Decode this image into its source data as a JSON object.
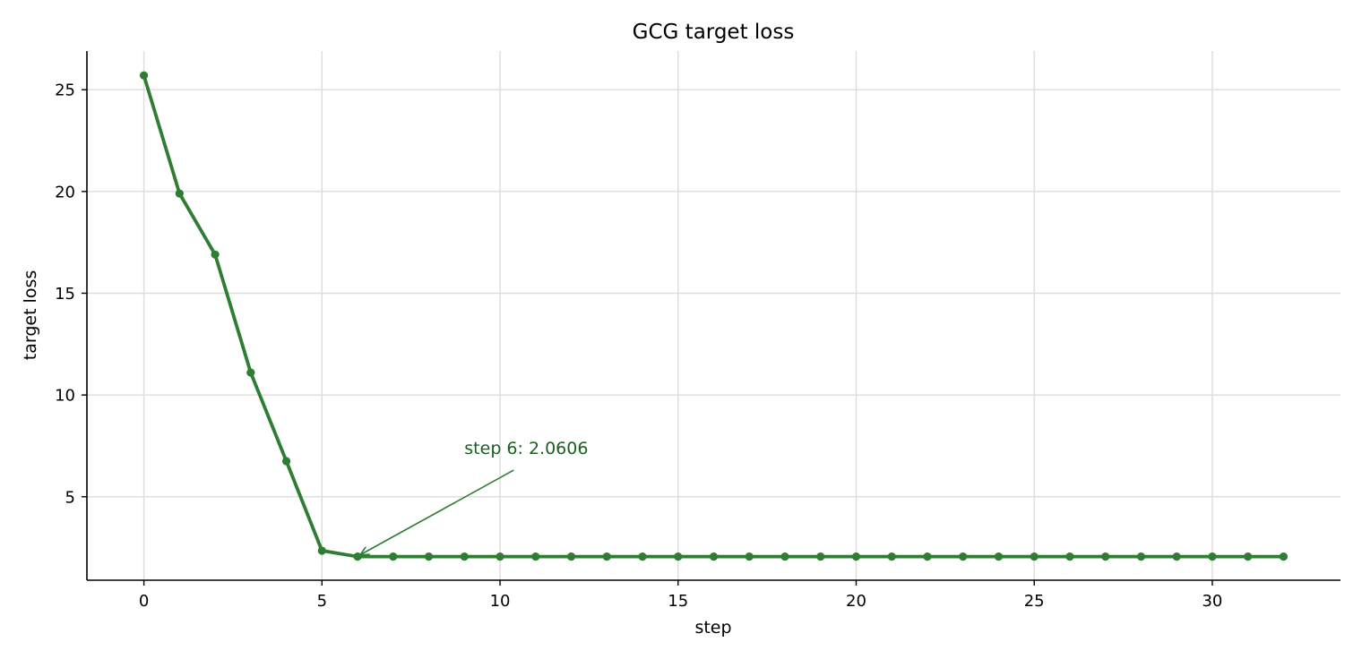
{
  "chart_data": {
    "type": "line",
    "title": "GCG target loss",
    "xlabel": "step",
    "ylabel": "target loss",
    "xlim": [
      -1.6,
      33.6
    ],
    "ylim": [
      0.9,
      26.9
    ],
    "xticks": [
      0,
      5,
      10,
      15,
      20,
      25,
      30
    ],
    "yticks": [
      5,
      10,
      15,
      20,
      25
    ],
    "grid": true,
    "series": [
      {
        "color": "#2e7d32",
        "x": [
          0,
          1,
          2,
          3,
          4,
          5,
          6,
          7,
          8,
          9,
          10,
          11,
          12,
          13,
          14,
          15,
          16,
          17,
          18,
          19,
          20,
          21,
          22,
          23,
          24,
          25,
          26,
          27,
          28,
          29,
          30,
          31,
          32
        ],
        "y": [
          25.7,
          19.9,
          16.9,
          11.1,
          6.75,
          2.35,
          2.0606,
          2.0606,
          2.0606,
          2.0606,
          2.0606,
          2.0606,
          2.0606,
          2.0606,
          2.0606,
          2.0606,
          2.0606,
          2.0606,
          2.0606,
          2.0606,
          2.0606,
          2.0606,
          2.0606,
          2.0606,
          2.0606,
          2.0606,
          2.0606,
          2.0606,
          2.0606,
          2.0606,
          2.0606,
          2.0606,
          2.0606
        ]
      }
    ],
    "annotation": {
      "text": "step 6: 2.0606",
      "point": [
        6,
        2.0606
      ],
      "text_anchor_data": [
        9,
        7.1
      ],
      "color": "#1b5e20"
    }
  }
}
